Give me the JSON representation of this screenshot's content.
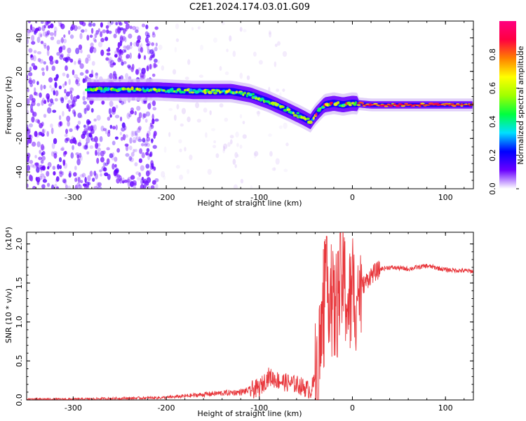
{
  "title": "C2E1.2024.174.03.01.G09",
  "chart_data": [
    {
      "type": "heatmap",
      "xlabel": "Height of straight line (km)",
      "ylabel": "Frequency (Hz)",
      "xlim": [
        -350,
        130
      ],
      "ylim": [
        -50,
        50
      ],
      "x_ticks": [
        -300,
        -200,
        -100,
        0,
        100
      ],
      "y_ticks": [
        -40,
        -20,
        0,
        20,
        40
      ],
      "colorbar": {
        "label": "Normalized spectral amplitude",
        "range": [
          0.0,
          1.0
        ],
        "ticks": [
          "0.0",
          "0.2",
          "0.4",
          "0.6",
          "0.8"
        ],
        "colors": [
          "#ffffff",
          "#6a00ff",
          "#0000ff",
          "#00e0ff",
          "#00ff40",
          "#a0ff00",
          "#ffff00",
          "#ff8000",
          "#ff0040",
          "#ff0080"
        ]
      },
      "ridge": {
        "x": [
          -285,
          -250,
          -210,
          -170,
          -130,
          -110,
          -90,
          -70,
          -55,
          -45,
          -40,
          -30,
          -20,
          -10,
          0,
          20,
          60,
          100,
          130
        ],
        "y": [
          9,
          9,
          9,
          8,
          8,
          6,
          2,
          -3,
          -7,
          -10,
          -6,
          0,
          1,
          0,
          1,
          0,
          0,
          0,
          0
        ]
      },
      "noise_region": {
        "x": [
          -350,
          -210
        ],
        "y": [
          -50,
          50
        ]
      }
    },
    {
      "type": "line",
      "xlabel": "Height of straight line (km)",
      "ylabel": "SNR (10 * v/v)",
      "yscale_label": "(x10⁴)",
      "xlim": [
        -350,
        130
      ],
      "ylim": [
        0,
        2.15
      ],
      "x_ticks": [
        -300,
        -200,
        -100,
        0,
        100
      ],
      "y_ticks": [
        "0.0",
        "0.5",
        "1.0",
        "1.5",
        "2.0"
      ],
      "color": "#e8363b",
      "series": [
        {
          "x": [
            -350,
            -300,
            -250,
            -200,
            -180,
            -150,
            -120,
            -100,
            -90,
            -80,
            -70,
            -60,
            -50,
            -45,
            -40,
            -35,
            -30,
            -25,
            -20,
            -15,
            -10,
            -5,
            0,
            10,
            20,
            30,
            40,
            60,
            80,
            100,
            130
          ],
          "y": [
            0.01,
            0.01,
            0.02,
            0.03,
            0.05,
            0.08,
            0.1,
            0.15,
            0.3,
            0.25,
            0.22,
            0.2,
            0.15,
            0.12,
            0.25,
            0.6,
            1.2,
            1.5,
            1.1,
            1.3,
            1.6,
            1.2,
            1.3,
            1.45,
            1.6,
            1.68,
            1.7,
            1.68,
            1.72,
            1.67,
            1.65
          ]
        }
      ]
    }
  ]
}
